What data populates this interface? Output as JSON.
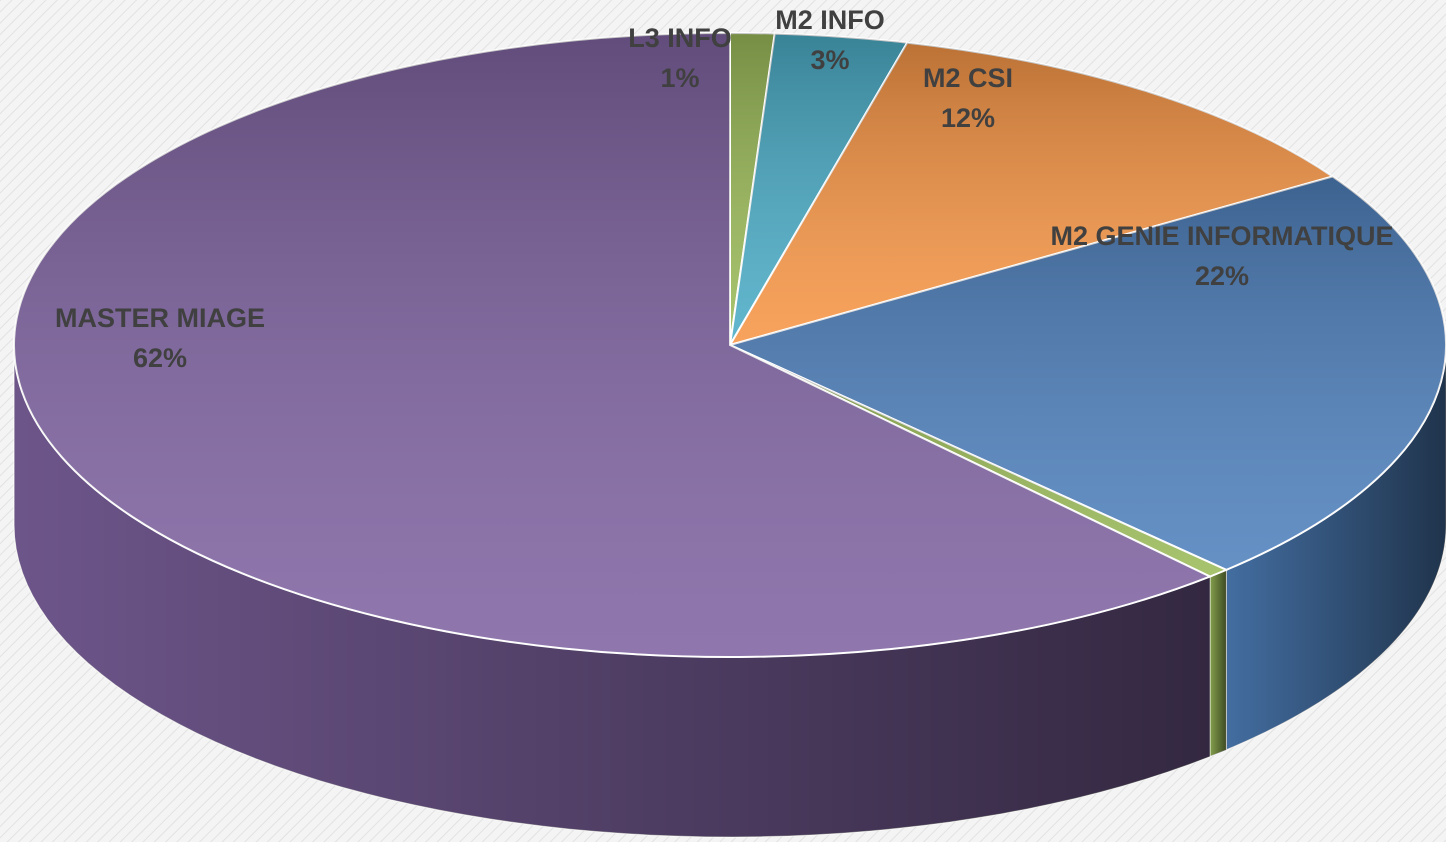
{
  "chart_data": {
    "type": "pie3d",
    "categories": [
      "L3 INFO",
      "M2 INFO",
      "M2 CSI",
      "M2 GENIE INFORMATIQUE",
      null,
      "MASTER MIAGE"
    ],
    "values": [
      1,
      3,
      12,
      22,
      0.5,
      62
    ],
    "value_labels": [
      "1%",
      "3%",
      "12%",
      "22%",
      null,
      "62%"
    ],
    "colors": [
      "#9bbb59",
      "#4bacc6",
      "#f79646",
      "#4f81bd",
      "#9bbb59",
      "#8064a2"
    ]
  }
}
